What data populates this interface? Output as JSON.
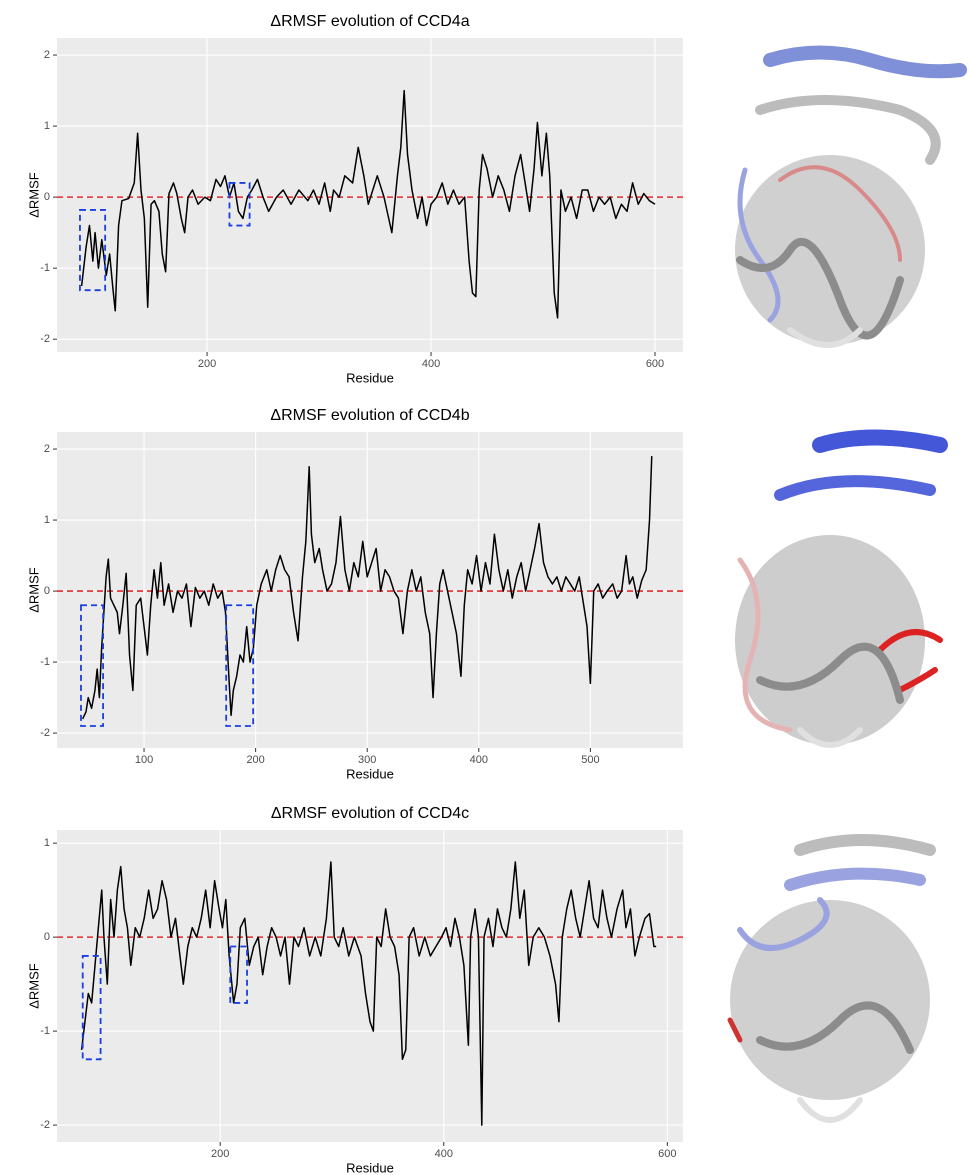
{
  "chart_data": [
    {
      "type": "line",
      "title": "ΔRMSF evolution of CCD4a",
      "x_label": "Residue",
      "y_label": "ΔRMSF",
      "color": "#000000",
      "x": [
        88,
        92,
        95,
        98,
        100,
        103,
        106,
        110,
        113,
        116,
        118,
        121,
        124,
        130,
        135,
        138,
        141,
        144,
        147,
        150,
        153,
        157,
        160,
        163,
        166,
        170,
        173,
        177,
        180,
        183,
        187,
        192,
        198,
        203,
        208,
        212,
        216,
        220,
        224,
        228,
        232,
        236,
        240,
        245,
        250,
        255,
        262,
        268,
        275,
        282,
        290,
        295,
        300,
        305,
        310,
        313,
        318,
        323,
        330,
        335,
        340,
        344,
        348,
        352,
        358,
        365,
        370,
        373,
        376,
        379,
        383,
        388,
        392,
        396,
        400,
        405,
        410,
        415,
        420,
        425,
        430,
        434,
        437,
        440,
        443,
        446,
        450,
        455,
        460,
        465,
        470,
        475,
        480,
        484,
        488,
        492,
        495,
        499,
        503,
        506,
        510,
        513,
        516,
        520,
        525,
        530,
        535,
        540,
        545,
        550,
        555,
        560,
        565,
        570,
        575,
        580,
        585,
        590,
        595,
        600
      ],
      "values": [
        -1.25,
        -0.7,
        -0.4,
        -0.9,
        -0.5,
        -1.0,
        -0.6,
        -1.1,
        -0.8,
        -1.3,
        -1.6,
        -0.4,
        -0.05,
        -0.02,
        0.2,
        0.9,
        0.1,
        -0.3,
        -1.55,
        -0.1,
        -0.05,
        -0.2,
        -0.8,
        -1.05,
        0.05,
        0.2,
        0.05,
        -0.3,
        -0.5,
        0.0,
        0.1,
        -0.1,
        0.0,
        -0.05,
        0.25,
        0.15,
        0.3,
        0.0,
        0.2,
        -0.2,
        -0.3,
        0.0,
        0.1,
        0.25,
        0.0,
        -0.2,
        0.0,
        0.1,
        -0.1,
        0.1,
        -0.05,
        0.1,
        -0.1,
        0.2,
        -0.2,
        0.1,
        0.0,
        0.3,
        0.2,
        0.7,
        0.3,
        -0.1,
        0.1,
        0.3,
        0.0,
        -0.5,
        0.3,
        0.7,
        1.5,
        0.6,
        0.1,
        -0.3,
        0.0,
        -0.4,
        -0.1,
        0.0,
        0.2,
        -0.1,
        0.1,
        -0.1,
        0.0,
        -0.9,
        -1.35,
        -1.4,
        0.1,
        0.6,
        0.4,
        0.0,
        0.3,
        0.1,
        -0.2,
        0.3,
        0.6,
        0.2,
        -0.2,
        0.4,
        1.05,
        0.3,
        0.9,
        0.3,
        -1.35,
        -1.7,
        0.1,
        -0.2,
        0.0,
        -0.3,
        0.1,
        0.1,
        -0.2,
        0.0,
        -0.1,
        0.0,
        -0.3,
        -0.1,
        -0.2,
        0.2,
        -0.1,
        0.05,
        -0.05,
        -0.1
      ],
      "xlim": [
        66,
        625
      ],
      "xticks": [
        200,
        400,
        600
      ],
      "ylim": [
        -2.18,
        2.24
      ],
      "yticks": [
        -2,
        -1,
        0,
        1,
        2
      ],
      "grid": true,
      "reference_line": {
        "value": 0,
        "color": "#e8292b"
      },
      "highlight_boxes": [
        {
          "x": [
            86.5,
            109
          ],
          "y": [
            -1.31,
            -0.18
          ],
          "color": "#1a3fe0"
        },
        {
          "x": [
            220,
            238
          ],
          "y": [
            -0.4,
            0.2
          ],
          "color": "#1a3fe0"
        }
      ]
    },
    {
      "type": "line",
      "title": "ΔRMSF evolution of CCD4b",
      "x_label": "Residue",
      "y_label": "ΔRMSF",
      "color": "#000000",
      "x": [
        45,
        48,
        50,
        53,
        56,
        58,
        60,
        62,
        64,
        66,
        68,
        70,
        73,
        76,
        78,
        81,
        84,
        87,
        90,
        93,
        97,
        100,
        103,
        106,
        109,
        112,
        115,
        118,
        122,
        126,
        130,
        134,
        138,
        142,
        146,
        150,
        154,
        158,
        162,
        166,
        170,
        173,
        176,
        178,
        180,
        183,
        186,
        189,
        192,
        195,
        198,
        201,
        205,
        210,
        214,
        218,
        222,
        226,
        230,
        234,
        238,
        242,
        245,
        248,
        250,
        253,
        257,
        260,
        264,
        268,
        272,
        276,
        280,
        284,
        288,
        292,
        296,
        300,
        304,
        308,
        312,
        316,
        320,
        324,
        328,
        332,
        336,
        340,
        344,
        348,
        352,
        356,
        359,
        362,
        365,
        368,
        372,
        376,
        380,
        384,
        387,
        390,
        394,
        398,
        402,
        406,
        410,
        414,
        418,
        422,
        426,
        430,
        434,
        438,
        442,
        446,
        450,
        454,
        458,
        462,
        466,
        470,
        474,
        478,
        482,
        486,
        490,
        494,
        497,
        500,
        503,
        507,
        511,
        515,
        520,
        524,
        528,
        532,
        535,
        538,
        542,
        546,
        550,
        553,
        555
      ],
      "values": [
        -1.8,
        -1.7,
        -1.5,
        -1.65,
        -1.4,
        -1.1,
        -1.5,
        -0.8,
        -0.3,
        0.2,
        0.45,
        -0.1,
        -0.2,
        -0.3,
        -0.6,
        -0.2,
        0.25,
        -0.9,
        -1.4,
        -0.2,
        -0.1,
        -0.5,
        -0.9,
        -0.2,
        0.3,
        -0.1,
        0.4,
        -0.2,
        0.1,
        -0.3,
        0.0,
        -0.1,
        0.1,
        -0.5,
        0.05,
        -0.1,
        0.0,
        -0.2,
        0.1,
        -0.1,
        0.0,
        -0.3,
        -1.2,
        -1.75,
        -1.4,
        -1.2,
        -0.9,
        -1.0,
        -0.5,
        -1.0,
        -0.8,
        -0.2,
        0.1,
        0.3,
        0.0,
        0.3,
        0.5,
        0.3,
        0.2,
        -0.3,
        -0.7,
        0.2,
        0.7,
        1.75,
        0.8,
        0.4,
        0.6,
        0.3,
        0.0,
        0.1,
        0.4,
        1.05,
        0.3,
        0.0,
        0.4,
        0.2,
        0.7,
        0.2,
        0.4,
        0.6,
        0.0,
        0.3,
        0.2,
        0.0,
        -0.1,
        -0.6,
        0.0,
        0.3,
        0.0,
        0.2,
        -0.3,
        -0.6,
        -1.5,
        -0.6,
        0.1,
        0.3,
        0.0,
        -0.3,
        -0.6,
        -1.2,
        -0.2,
        0.3,
        0.1,
        0.5,
        0.0,
        0.4,
        0.1,
        0.8,
        0.3,
        0.0,
        0.3,
        -0.1,
        0.2,
        0.4,
        0.0,
        0.3,
        0.6,
        0.95,
        0.4,
        0.2,
        0.1,
        0.2,
        0.0,
        0.2,
        0.1,
        0.0,
        0.2,
        -0.2,
        -0.5,
        -1.3,
        0.0,
        0.1,
        -0.1,
        0.0,
        0.1,
        -0.1,
        0.0,
        0.5,
        0.1,
        0.2,
        -0.1,
        0.15,
        0.3,
        1.0,
        1.9
      ],
      "xlim": [
        22,
        583
      ],
      "xticks": [
        100,
        200,
        300,
        400,
        500
      ],
      "ylim": [
        -2.21,
        2.24
      ],
      "yticks": [
        -2,
        -1,
        0,
        1,
        2
      ],
      "grid": true,
      "reference_line": {
        "value": 0,
        "color": "#e8292b"
      },
      "highlight_boxes": [
        {
          "x": [
            43.5,
            63.3
          ],
          "y": [
            -1.9,
            -0.2
          ],
          "color": "#1a3fe0"
        },
        {
          "x": [
            173.6,
            197.8
          ],
          "y": [
            -1.9,
            -0.2
          ],
          "color": "#1a3fe0"
        }
      ]
    },
    {
      "type": "line",
      "title": "ΔRMSF evolution of CCD4c",
      "x_label": "Residue",
      "y_label": "ΔRMSF",
      "color": "#000000",
      "x": [
        76,
        79,
        82,
        85,
        88,
        91,
        94,
        96,
        99,
        102,
        105,
        108,
        111,
        114,
        117,
        120,
        124,
        128,
        132,
        136,
        140,
        144,
        148,
        152,
        156,
        160,
        163,
        167,
        171,
        175,
        179,
        183,
        187,
        191,
        195,
        199,
        202,
        205,
        208,
        212,
        215,
        218,
        222,
        226,
        230,
        234,
        238,
        242,
        246,
        250,
        254,
        258,
        262,
        266,
        270,
        275,
        280,
        285,
        290,
        295,
        299,
        302,
        306,
        310,
        315,
        320,
        326,
        330,
        334,
        337,
        340,
        344,
        348,
        352,
        356,
        360,
        363,
        366,
        369,
        373,
        378,
        383,
        388,
        393,
        398,
        402,
        406,
        410,
        414,
        418,
        422,
        424,
        428,
        431,
        434,
        436,
        440,
        444,
        448,
        452,
        456,
        460,
        464,
        468,
        472,
        476,
        480,
        485,
        490,
        495,
        500,
        503,
        506,
        510,
        514,
        518,
        522,
        526,
        530,
        534,
        538,
        542,
        546,
        550,
        555,
        560,
        563,
        567,
        571,
        575,
        580,
        584,
        588,
        590
      ],
      "values": [
        -1.2,
        -0.9,
        -0.6,
        -0.7,
        -0.3,
        0.1,
        0.5,
        0.0,
        -0.5,
        0.4,
        0.0,
        0.5,
        0.75,
        0.3,
        0.1,
        -0.3,
        0.1,
        0.0,
        0.2,
        0.5,
        0.2,
        0.3,
        0.6,
        0.4,
        0.0,
        0.2,
        -0.1,
        -0.5,
        -0.1,
        0.1,
        0.0,
        0.2,
        0.5,
        0.1,
        0.6,
        0.3,
        0.1,
        0.4,
        -0.2,
        -0.7,
        -0.5,
        0.1,
        0.2,
        -0.3,
        -0.1,
        0.0,
        -0.4,
        -0.1,
        0.1,
        0.0,
        -0.2,
        0.0,
        -0.5,
        0.0,
        -0.1,
        0.1,
        -0.2,
        0.0,
        -0.2,
        0.2,
        0.8,
        0.0,
        -0.1,
        0.1,
        -0.2,
        0.0,
        -0.2,
        -0.6,
        -0.9,
        -1.0,
        0.0,
        -0.1,
        0.3,
        0.0,
        -0.1,
        -0.4,
        -1.3,
        -1.2,
        0.0,
        0.1,
        -0.2,
        0.0,
        -0.2,
        -0.1,
        0.0,
        0.1,
        -0.1,
        0.2,
        0.0,
        -0.3,
        -1.15,
        0.0,
        0.3,
        0.0,
        -2.0,
        0.0,
        0.2,
        -0.1,
        0.3,
        0.1,
        0.0,
        0.3,
        0.8,
        0.2,
        0.5,
        -0.3,
        0.0,
        0.1,
        0.0,
        -0.2,
        -0.5,
        -0.9,
        0.0,
        0.3,
        0.5,
        0.2,
        0.0,
        0.3,
        0.6,
        0.2,
        0.1,
        0.5,
        0.2,
        0.0,
        0.3,
        0.5,
        0.1,
        0.3,
        -0.2,
        0.0,
        0.2,
        0.25,
        -0.1,
        -0.1
      ],
      "xlim": [
        54,
        614
      ],
      "xticks": [
        200,
        400,
        600
      ],
      "ylim": [
        -2.18,
        1.14
      ],
      "yticks": [
        -2,
        -1,
        0,
        1
      ],
      "grid": true,
      "reference_line": {
        "value": 0,
        "color": "#e8292b"
      },
      "highlight_boxes": [
        {
          "x": [
            77,
            93
          ],
          "y": [
            -1.3,
            -0.2
          ],
          "color": "#1a3fe0"
        },
        {
          "x": [
            209,
            224
          ],
          "y": [
            -0.7,
            -0.1
          ],
          "color": "#1a3fe0"
        }
      ]
    }
  ]
}
